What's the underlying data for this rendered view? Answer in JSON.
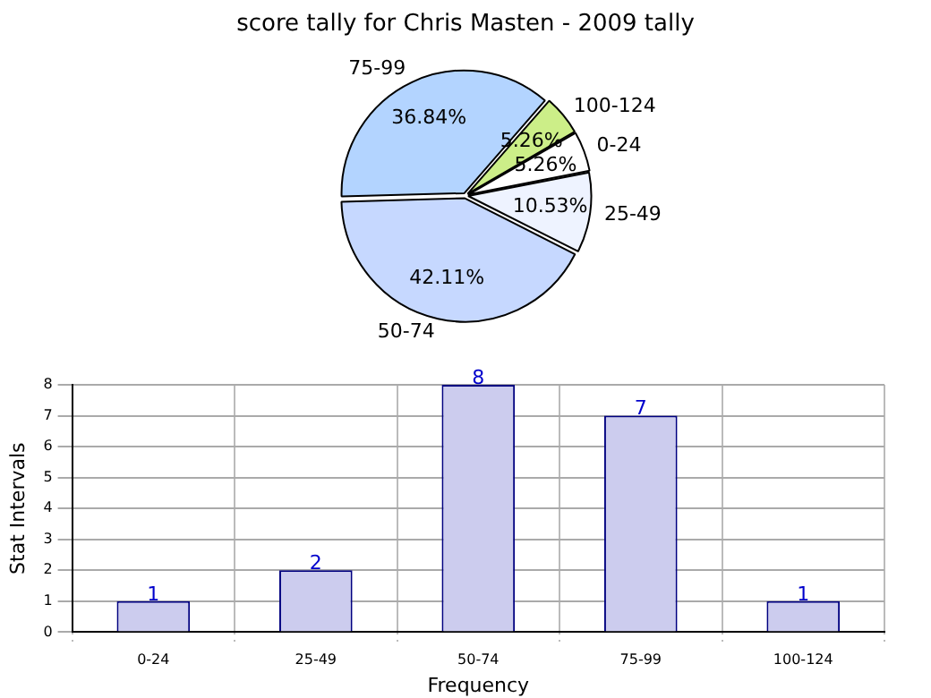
{
  "chart_data": [
    {
      "type": "pie",
      "title": "score tally for Chris Masten - 2009 tally",
      "categories": [
        "0-24",
        "25-49",
        "50-74",
        "75-99",
        "100-124"
      ],
      "values": [
        5.26,
        10.53,
        42.11,
        36.84,
        5.26
      ],
      "colors": [
        "#ffffff",
        "#eef3ff",
        "#c6d8ff",
        "#b3d4ff",
        "#ccee88"
      ],
      "value_labels": [
        "5.26%",
        "10.53%",
        "42.11%",
        "36.84%",
        "5.26%"
      ]
    },
    {
      "type": "bar",
      "categories": [
        "0-24",
        "25-49",
        "50-74",
        "75-99",
        "100-124"
      ],
      "values": [
        1,
        2,
        8,
        7,
        1
      ],
      "color": "#ccccee",
      "xlabel": "Frequency",
      "ylabel": "Stat Intervals",
      "ylim": [
        0,
        8
      ],
      "yticks": [
        0,
        1,
        2,
        3,
        4,
        5,
        6,
        7,
        8
      ],
      "grid": true,
      "data_labels": true
    }
  ]
}
